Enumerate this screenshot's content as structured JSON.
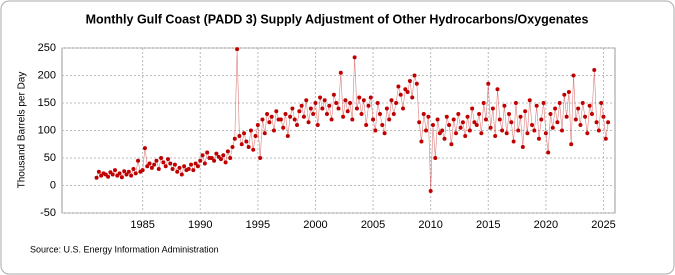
{
  "chart_data": {
    "type": "scatter-line",
    "title": "Monthly Gulf Coast (PADD 3) Supply Adjustment of Other Hydrocarbons/Oxygenates",
    "y_label": "Thousand Barrels per Day",
    "source": "Source: U.S. Energy Information Administration",
    "xlim": [
      1978,
      2026
    ],
    "xticks": [
      1985,
      1990,
      1995,
      2000,
      2005,
      2010,
      2015,
      2020,
      2025
    ],
    "ylim": [
      -50,
      250
    ],
    "yticks": [
      -50,
      0,
      50,
      100,
      150,
      200,
      250
    ],
    "grid": true,
    "series": [
      {
        "color": "#c00000",
        "x": [
          1981,
          1981.2,
          1981.4,
          1981.6,
          1981.8,
          1982,
          1982.2,
          1982.4,
          1982.6,
          1982.8,
          1983,
          1983.2,
          1983.4,
          1983.6,
          1983.8,
          1984,
          1984.2,
          1984.4,
          1984.6,
          1984.8,
          1985,
          1985.2,
          1985.4,
          1985.6,
          1985.8,
          1986,
          1986.2,
          1986.4,
          1986.6,
          1986.8,
          1987,
          1987.2,
          1987.4,
          1987.6,
          1987.8,
          1988,
          1988.2,
          1988.4,
          1988.6,
          1988.8,
          1989,
          1989.2,
          1989.4,
          1989.6,
          1989.8,
          1990,
          1990.2,
          1990.4,
          1990.6,
          1990.8,
          1991,
          1991.2,
          1991.4,
          1991.6,
          1991.8,
          1992,
          1992.2,
          1992.4,
          1992.6,
          1992.8,
          1993,
          1993.2,
          1993.4,
          1993.6,
          1993.8,
          1994,
          1994.2,
          1994.4,
          1994.6,
          1994.8,
          1995,
          1995.2,
          1995.4,
          1995.6,
          1995.8,
          1996,
          1996.2,
          1996.4,
          1996.6,
          1996.8,
          1997,
          1997.2,
          1997.4,
          1997.6,
          1997.8,
          1998,
          1998.2,
          1998.4,
          1998.6,
          1998.8,
          1999,
          1999.2,
          1999.4,
          1999.6,
          1999.8,
          2000,
          2000.2,
          2000.4,
          2000.6,
          2000.8,
          2001,
          2001.2,
          2001.4,
          2001.6,
          2001.8,
          2002,
          2002.2,
          2002.4,
          2002.6,
          2002.8,
          2003,
          2003.2,
          2003.4,
          2003.6,
          2003.8,
          2004,
          2004.2,
          2004.4,
          2004.6,
          2004.8,
          2005,
          2005.2,
          2005.4,
          2005.6,
          2005.8,
          2006,
          2006.2,
          2006.4,
          2006.6,
          2006.8,
          2007,
          2007.2,
          2007.4,
          2007.6,
          2007.8,
          2008,
          2008.2,
          2008.4,
          2008.6,
          2008.8,
          2009,
          2009.2,
          2009.4,
          2009.6,
          2009.8,
          2010,
          2010.2,
          2010.4,
          2010.6,
          2010.8,
          2011,
          2011.2,
          2011.4,
          2011.6,
          2011.8,
          2012,
          2012.2,
          2012.4,
          2012.6,
          2012.8,
          2013,
          2013.2,
          2013.4,
          2013.6,
          2013.8,
          2014,
          2014.2,
          2014.4,
          2014.6,
          2014.8,
          2015,
          2015.2,
          2015.4,
          2015.6,
          2015.8,
          2016,
          2016.2,
          2016.4,
          2016.6,
          2016.8,
          2017,
          2017.2,
          2017.4,
          2017.6,
          2017.8,
          2018,
          2018.2,
          2018.4,
          2018.6,
          2018.8,
          2019,
          2019.2,
          2019.4,
          2019.6,
          2019.8,
          2020,
          2020.2,
          2020.4,
          2020.6,
          2020.8,
          2021,
          2021.2,
          2021.4,
          2021.6,
          2021.8,
          2022,
          2022.2,
          2022.4,
          2022.6,
          2022.8,
          2023,
          2023.2,
          2023.4,
          2023.6,
          2023.8,
          2024,
          2024.2,
          2024.4,
          2024.6,
          2024.8,
          2025,
          2025.2,
          2025.4
        ],
        "values": [
          14,
          25,
          18,
          22,
          20,
          16,
          24,
          20,
          28,
          18,
          22,
          15,
          26,
          20,
          25,
          18,
          30,
          22,
          45,
          25,
          28,
          68,
          35,
          40,
          32,
          38,
          45,
          30,
          50,
          42,
          35,
          48,
          40,
          30,
          38,
          25,
          32,
          20,
          35,
          28,
          30,
          38,
          28,
          40,
          35,
          45,
          55,
          40,
          60,
          50,
          50,
          45,
          58,
          52,
          48,
          55,
          42,
          62,
          50,
          70,
          85,
          248,
          90,
          75,
          95,
          80,
          70,
          100,
          65,
          90,
          110,
          50,
          120,
          95,
          130,
          115,
          125,
          100,
          135,
          120,
          120,
          105,
          130,
          90,
          125,
          140,
          120,
          110,
          135,
          145,
          125,
          155,
          115,
          140,
          130,
          150,
          110,
          160,
          140,
          155,
          130,
          145,
          120,
          165,
          150,
          140,
          205,
          125,
          155,
          135,
          150,
          120,
          233,
          140,
          160,
          130,
          155,
          110,
          145,
          160,
          120,
          100,
          150,
          130,
          110,
          95,
          140,
          120,
          155,
          130,
          150,
          180,
          165,
          140,
          175,
          170,
          190,
          160,
          200,
          185,
          115,
          80,
          130,
          100,
          125,
          -10,
          110,
          50,
          120,
          95,
          100,
          85,
          125,
          110,
          75,
          120,
          95,
          130,
          105,
          115,
          90,
          125,
          100,
          140,
          115,
          110,
          130,
          95,
          150,
          120,
          185,
          105,
          140,
          90,
          175,
          120,
          100,
          145,
          95,
          130,
          115,
          80,
          150,
          100,
          125,
          70,
          135,
          95,
          155,
          110,
          100,
          145,
          85,
          120,
          150,
          95,
          60,
          130,
          105,
          140,
          115,
          150,
          100,
          165,
          125,
          170,
          75,
          200,
          120,
          140,
          110,
          150,
          125,
          95,
          145,
          130,
          210,
          115,
          100,
          150,
          125,
          85,
          115
        ]
      }
    ]
  }
}
